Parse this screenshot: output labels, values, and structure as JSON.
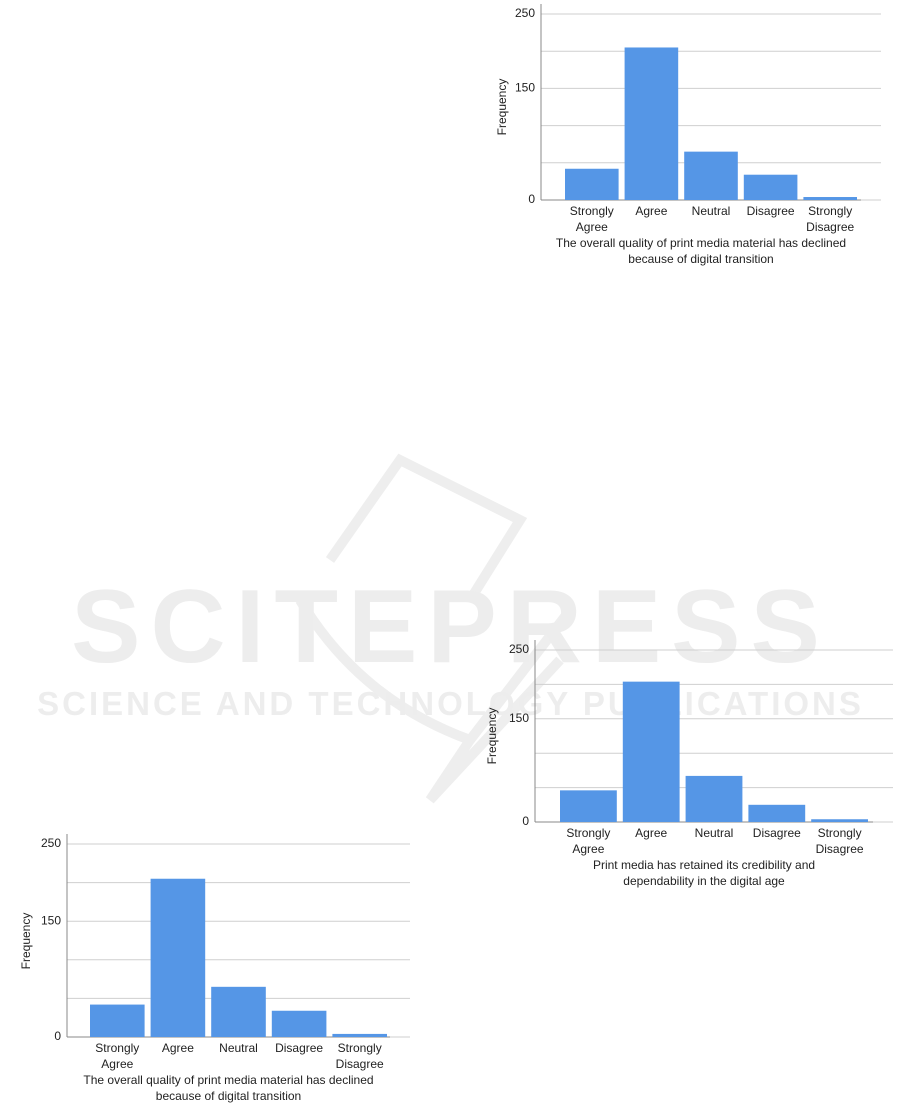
{
  "watermark": {
    "title": "SCITEPRESS",
    "subtitle": "SCIENCE AND TECHNOLOGY PUBLICATIONS"
  },
  "chart_data": [
    {
      "type": "bar",
      "xlabel": "The overall quality of print media material has declined because of digital transition",
      "ylabel": "Frequency",
      "categories": [
        "Strongly Agree",
        "Agree",
        "Neutral",
        "Disagree",
        "Strongly Disagree"
      ],
      "values": [
        42,
        205,
        65,
        34,
        4
      ],
      "color": "#5596e6",
      "ylim": [
        0,
        250
      ],
      "yticks": [
        0,
        {
          "value": 50,
          "label": null
        },
        {
          "value": 100,
          "label": null
        },
        150,
        {
          "value": 200,
          "label": null
        },
        250
      ],
      "grid": true
    },
    {
      "type": "bar",
      "xlabel": "Print media has retained its credibility and dependability in the digital age",
      "ylabel": "Frequency",
      "categories": [
        "Strongly Agree",
        "Agree",
        "Neutral",
        "Disagree",
        "Strongly Disagree"
      ],
      "values": [
        46,
        204,
        67,
        25,
        4
      ],
      "color": "#5596e6",
      "ylim": [
        0,
        250
      ],
      "yticks": [
        0,
        {
          "value": 50,
          "label": null
        },
        {
          "value": 100,
          "label": null
        },
        150,
        {
          "value": 200,
          "label": null
        },
        250
      ],
      "grid": true
    },
    {
      "type": "bar",
      "xlabel": "The overall quality of print media material has declined because of digital transition",
      "ylabel": "Frequency",
      "categories": [
        "Strongly Agree",
        "Agree",
        "Neutral",
        "Disagree",
        "Strongly Disagree"
      ],
      "values": [
        42,
        205,
        65,
        34,
        4
      ],
      "color": "#5596e6",
      "ylim": [
        0,
        250
      ],
      "yticks": [
        0,
        {
          "value": 50,
          "label": null
        },
        {
          "value": 100,
          "label": null
        },
        150,
        {
          "value": 200,
          "label": null
        },
        250
      ],
      "grid": true
    }
  ]
}
